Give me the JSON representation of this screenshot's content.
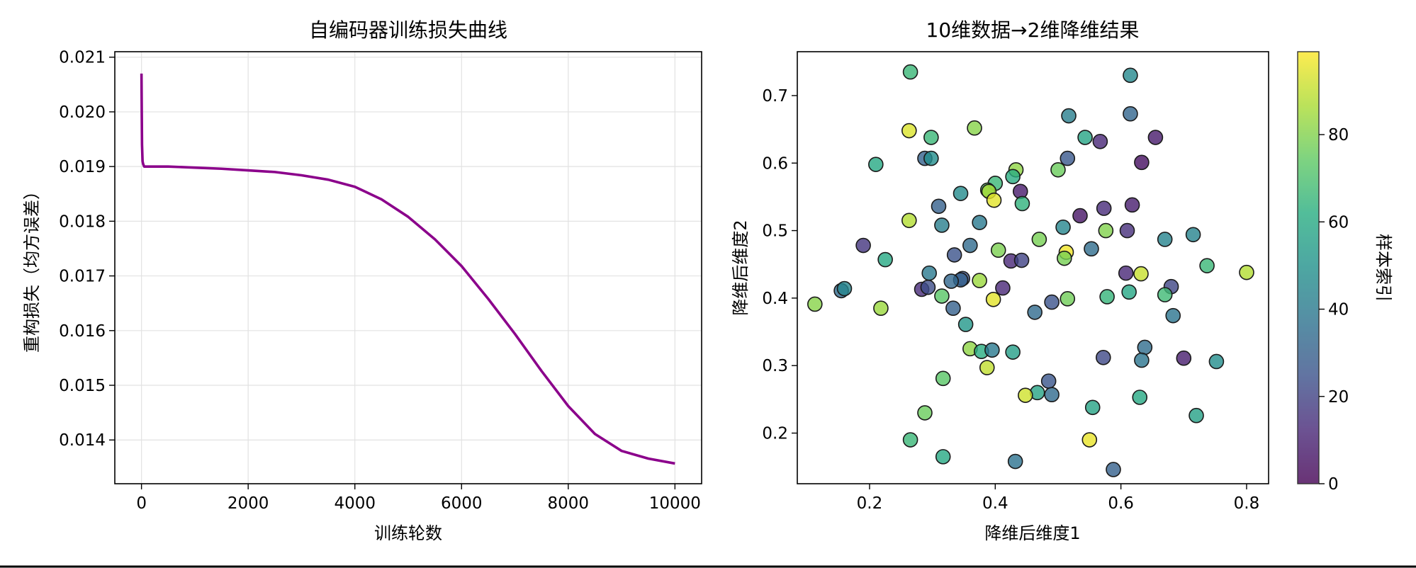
{
  "chart_data": [
    {
      "type": "line",
      "title": "自编码器训练损失曲线",
      "xlabel": "训练轮数",
      "ylabel": "重构损失（均方误差）",
      "xlim": [
        -500,
        10500
      ],
      "ylim": [
        0.0132,
        0.0211
      ],
      "xticks": [
        0,
        2000,
        4000,
        6000,
        8000,
        10000
      ],
      "yticks": [
        0.014,
        0.015,
        0.016,
        0.017,
        0.018,
        0.019,
        0.02,
        0.021
      ],
      "grid": true,
      "line_color": "#8b008b",
      "series": [
        {
          "x": [
            0,
            5,
            10,
            20,
            30,
            50,
            80,
            100,
            200,
            500,
            1000,
            1500,
            2000,
            2500,
            3000,
            3500,
            4000,
            4500,
            5000,
            5500,
            6000,
            6500,
            7000,
            7500,
            8000,
            8500,
            9000,
            9500,
            10000
          ],
          "y": [
            0.0207,
            0.02,
            0.0194,
            0.0191,
            0.01905,
            0.019,
            0.019,
            0.019,
            0.019,
            0.019,
            0.01898,
            0.01896,
            0.01893,
            0.0189,
            0.01884,
            0.01876,
            0.01863,
            0.0184,
            0.01808,
            0.01767,
            0.01718,
            0.01658,
            0.01594,
            0.01526,
            0.01462,
            0.01411,
            0.0138,
            0.01366,
            0.01357
          ]
        }
      ]
    },
    {
      "type": "scatter",
      "title": "10维数据→2维降维结果",
      "xlabel": "降维后维度1",
      "ylabel": "降维后维度2",
      "xlim": [
        0.085,
        0.835
      ],
      "ylim": [
        0.125,
        0.765
      ],
      "xticks": [
        0.2,
        0.4,
        0.6,
        0.8
      ],
      "yticks": [
        0.2,
        0.3,
        0.4,
        0.5,
        0.6,
        0.7
      ],
      "grid": false,
      "colormap": "viridis",
      "colorbar": {
        "label": "样本索引",
        "range": [
          0,
          99
        ],
        "ticks": [
          0,
          20,
          40,
          60,
          80
        ]
      },
      "points": [
        {
          "x": 0.265,
          "y": 0.735,
          "c": 66
        },
        {
          "x": 0.615,
          "y": 0.73,
          "c": 46
        },
        {
          "x": 0.615,
          "y": 0.673,
          "c": 32
        },
        {
          "x": 0.517,
          "y": 0.67,
          "c": 42
        },
        {
          "x": 0.263,
          "y": 0.648,
          "c": 94
        },
        {
          "x": 0.367,
          "y": 0.652,
          "c": 81
        },
        {
          "x": 0.298,
          "y": 0.638,
          "c": 66
        },
        {
          "x": 0.543,
          "y": 0.638,
          "c": 58
        },
        {
          "x": 0.567,
          "y": 0.632,
          "c": 12
        },
        {
          "x": 0.655,
          "y": 0.638,
          "c": 8
        },
        {
          "x": 0.21,
          "y": 0.598,
          "c": 60
        },
        {
          "x": 0.288,
          "y": 0.607,
          "c": 31
        },
        {
          "x": 0.298,
          "y": 0.607,
          "c": 48
        },
        {
          "x": 0.515,
          "y": 0.607,
          "c": 27
        },
        {
          "x": 0.633,
          "y": 0.601,
          "c": 4
        },
        {
          "x": 0.433,
          "y": 0.59,
          "c": 82
        },
        {
          "x": 0.5,
          "y": 0.59,
          "c": 76
        },
        {
          "x": 0.428,
          "y": 0.58,
          "c": 62
        },
        {
          "x": 0.4,
          "y": 0.57,
          "c": 66
        },
        {
          "x": 0.388,
          "y": 0.56,
          "c": 73
        },
        {
          "x": 0.345,
          "y": 0.555,
          "c": 47
        },
        {
          "x": 0.44,
          "y": 0.558,
          "c": 8
        },
        {
          "x": 0.39,
          "y": 0.558,
          "c": 86
        },
        {
          "x": 0.398,
          "y": 0.545,
          "c": 95
        },
        {
          "x": 0.443,
          "y": 0.54,
          "c": 64
        },
        {
          "x": 0.31,
          "y": 0.536,
          "c": 30
        },
        {
          "x": 0.618,
          "y": 0.538,
          "c": 9
        },
        {
          "x": 0.573,
          "y": 0.533,
          "c": 13
        },
        {
          "x": 0.535,
          "y": 0.522,
          "c": 6
        },
        {
          "x": 0.263,
          "y": 0.515,
          "c": 88
        },
        {
          "x": 0.375,
          "y": 0.512,
          "c": 40
        },
        {
          "x": 0.315,
          "y": 0.508,
          "c": 42
        },
        {
          "x": 0.508,
          "y": 0.505,
          "c": 45
        },
        {
          "x": 0.576,
          "y": 0.5,
          "c": 80
        },
        {
          "x": 0.61,
          "y": 0.5,
          "c": 14
        },
        {
          "x": 0.715,
          "y": 0.494,
          "c": 44
        },
        {
          "x": 0.47,
          "y": 0.487,
          "c": 78
        },
        {
          "x": 0.67,
          "y": 0.487,
          "c": 44
        },
        {
          "x": 0.19,
          "y": 0.478,
          "c": 16
        },
        {
          "x": 0.36,
          "y": 0.478,
          "c": 34
        },
        {
          "x": 0.405,
          "y": 0.471,
          "c": 79
        },
        {
          "x": 0.553,
          "y": 0.473,
          "c": 35
        },
        {
          "x": 0.513,
          "y": 0.468,
          "c": 97
        },
        {
          "x": 0.335,
          "y": 0.464,
          "c": 25
        },
        {
          "x": 0.51,
          "y": 0.459,
          "c": 78
        },
        {
          "x": 0.225,
          "y": 0.457,
          "c": 60
        },
        {
          "x": 0.425,
          "y": 0.455,
          "c": 12
        },
        {
          "x": 0.442,
          "y": 0.456,
          "c": 20
        },
        {
          "x": 0.737,
          "y": 0.448,
          "c": 66
        },
        {
          "x": 0.8,
          "y": 0.438,
          "c": 88
        },
        {
          "x": 0.295,
          "y": 0.437,
          "c": 40
        },
        {
          "x": 0.608,
          "y": 0.437,
          "c": 12
        },
        {
          "x": 0.632,
          "y": 0.436,
          "c": 91
        },
        {
          "x": 0.348,
          "y": 0.429,
          "c": 25
        },
        {
          "x": 0.345,
          "y": 0.427,
          "c": 30
        },
        {
          "x": 0.33,
          "y": 0.425,
          "c": 33
        },
        {
          "x": 0.375,
          "y": 0.426,
          "c": 84
        },
        {
          "x": 0.155,
          "y": 0.411,
          "c": 34
        },
        {
          "x": 0.16,
          "y": 0.414,
          "c": 45
        },
        {
          "x": 0.283,
          "y": 0.413,
          "c": 13
        },
        {
          "x": 0.293,
          "y": 0.416,
          "c": 23
        },
        {
          "x": 0.412,
          "y": 0.415,
          "c": 12
        },
        {
          "x": 0.68,
          "y": 0.417,
          "c": 21
        },
        {
          "x": 0.613,
          "y": 0.409,
          "c": 59
        },
        {
          "x": 0.67,
          "y": 0.405,
          "c": 67
        },
        {
          "x": 0.315,
          "y": 0.403,
          "c": 73
        },
        {
          "x": 0.515,
          "y": 0.399,
          "c": 77
        },
        {
          "x": 0.578,
          "y": 0.402,
          "c": 65
        },
        {
          "x": 0.397,
          "y": 0.398,
          "c": 95
        },
        {
          "x": 0.49,
          "y": 0.394,
          "c": 25
        },
        {
          "x": 0.113,
          "y": 0.391,
          "c": 81
        },
        {
          "x": 0.218,
          "y": 0.385,
          "c": 84
        },
        {
          "x": 0.333,
          "y": 0.385,
          "c": 30
        },
        {
          "x": 0.463,
          "y": 0.379,
          "c": 34
        },
        {
          "x": 0.683,
          "y": 0.374,
          "c": 38
        },
        {
          "x": 0.353,
          "y": 0.361,
          "c": 52
        },
        {
          "x": 0.36,
          "y": 0.325,
          "c": 82
        },
        {
          "x": 0.378,
          "y": 0.321,
          "c": 62
        },
        {
          "x": 0.395,
          "y": 0.323,
          "c": 40
        },
        {
          "x": 0.428,
          "y": 0.32,
          "c": 55
        },
        {
          "x": 0.638,
          "y": 0.327,
          "c": 35
        },
        {
          "x": 0.572,
          "y": 0.312,
          "c": 22
        },
        {
          "x": 0.7,
          "y": 0.311,
          "c": 9
        },
        {
          "x": 0.633,
          "y": 0.308,
          "c": 38
        },
        {
          "x": 0.752,
          "y": 0.306,
          "c": 48
        },
        {
          "x": 0.387,
          "y": 0.297,
          "c": 90
        },
        {
          "x": 0.317,
          "y": 0.281,
          "c": 73
        },
        {
          "x": 0.485,
          "y": 0.277,
          "c": 26
        },
        {
          "x": 0.467,
          "y": 0.26,
          "c": 57
        },
        {
          "x": 0.448,
          "y": 0.256,
          "c": 92
        },
        {
          "x": 0.49,
          "y": 0.257,
          "c": 34
        },
        {
          "x": 0.63,
          "y": 0.253,
          "c": 60
        },
        {
          "x": 0.555,
          "y": 0.238,
          "c": 57
        },
        {
          "x": 0.288,
          "y": 0.23,
          "c": 76
        },
        {
          "x": 0.72,
          "y": 0.226,
          "c": 56
        },
        {
          "x": 0.265,
          "y": 0.19,
          "c": 66
        },
        {
          "x": 0.55,
          "y": 0.19,
          "c": 96
        },
        {
          "x": 0.317,
          "y": 0.165,
          "c": 60
        },
        {
          "x": 0.432,
          "y": 0.158,
          "c": 37
        },
        {
          "x": 0.588,
          "y": 0.146,
          "c": 30
        }
      ]
    }
  ]
}
